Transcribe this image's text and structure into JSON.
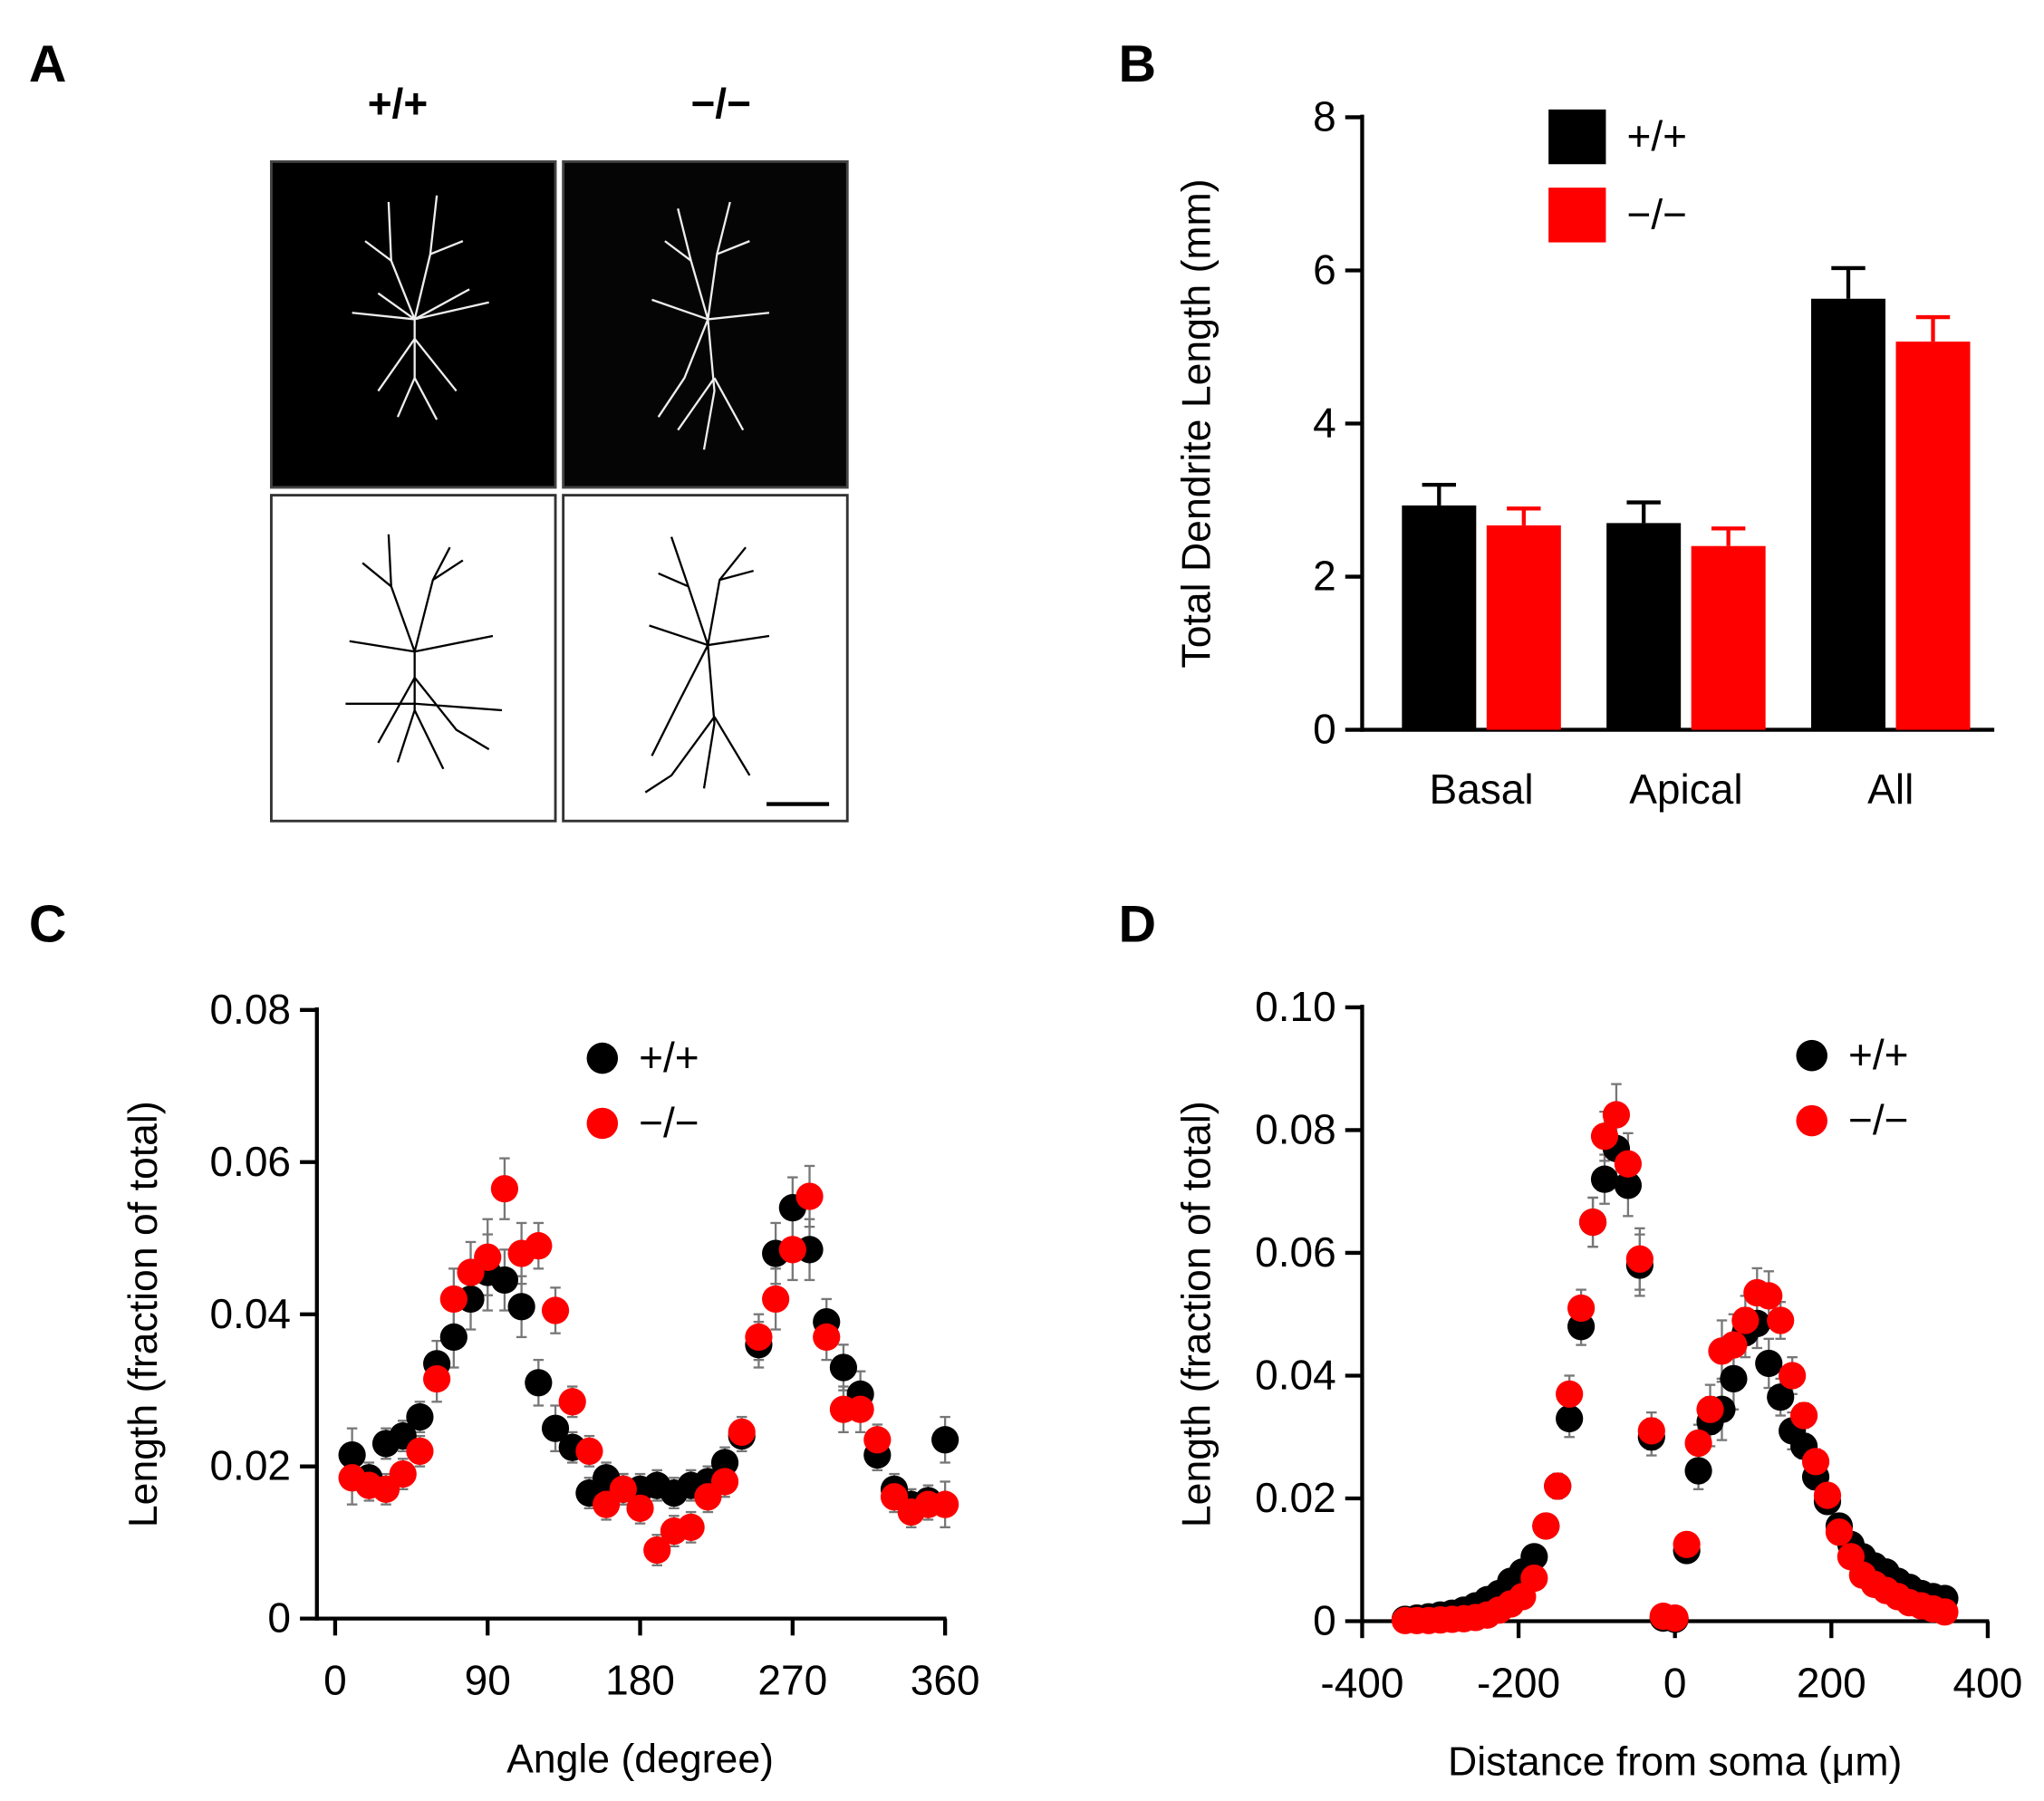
{
  "panel_labels": [
    "A",
    "B",
    "C",
    "D"
  ],
  "panel_a": {
    "labels": [
      "+/+",
      "−/−"
    ]
  },
  "chart_data": [
    {
      "type": "bar",
      "ylabel": "Total Dendrite Length (mm)",
      "categories": [
        "Basal",
        "Apical",
        "All"
      ],
      "series": [
        {
          "name": "+/+",
          "color": "#000000",
          "values": [
            2.93,
            2.7,
            5.63
          ],
          "errors": [
            0.27,
            0.27,
            0.4
          ]
        },
        {
          "name": "−/−",
          "color": "#ff0000",
          "values": [
            2.67,
            2.4,
            5.07
          ],
          "errors": [
            0.22,
            0.23,
            0.32
          ]
        }
      ],
      "ylim": [
        0,
        8
      ],
      "yticks": [
        0,
        2,
        4,
        6,
        8
      ]
    },
    {
      "type": "scatter",
      "xlabel": "Angle (degree)",
      "ylabel": "Length (fraction of total)",
      "x": [
        10,
        20,
        30,
        40,
        50,
        60,
        70,
        80,
        90,
        100,
        110,
        120,
        130,
        140,
        150,
        160,
        170,
        180,
        190,
        200,
        210,
        220,
        230,
        240,
        250,
        260,
        270,
        280,
        290,
        300,
        310,
        320,
        330,
        340,
        350,
        360
      ],
      "series": [
        {
          "name": "+/+",
          "color": "#000000",
          "values": [
            0.0215,
            0.0185,
            0.023,
            0.024,
            0.0265,
            0.0335,
            0.037,
            0.042,
            0.0455,
            0.0445,
            0.041,
            0.031,
            0.025,
            0.0225,
            0.0165,
            0.0185,
            0.017,
            0.017,
            0.0175,
            0.0165,
            0.0175,
            0.018,
            0.0205,
            0.024,
            0.036,
            0.048,
            0.054,
            0.0485,
            0.039,
            0.033,
            0.0295,
            0.0215,
            0.017,
            0.015,
            0.0155,
            0.0235
          ],
          "errors": [
            0.0035,
            0.002,
            0.002,
            0.002,
            0.002,
            0.003,
            0.004,
            0.004,
            0.005,
            0.004,
            0.004,
            0.003,
            0.003,
            0.002,
            0.002,
            0.002,
            0.002,
            0.002,
            0.002,
            0.002,
            0.002,
            0.002,
            0.002,
            0.002,
            0.003,
            0.004,
            0.004,
            0.004,
            0.003,
            0.003,
            0.003,
            0.002,
            0.002,
            0.002,
            0.002,
            0.003
          ]
        },
        {
          "name": "−/−",
          "color": "#ff0000",
          "values": [
            0.0185,
            0.0175,
            0.017,
            0.019,
            0.022,
            0.0315,
            0.042,
            0.0455,
            0.0475,
            0.0565,
            0.048,
            0.049,
            0.0405,
            0.0285,
            0.022,
            0.015,
            0.017,
            0.0145,
            0.009,
            0.0115,
            0.012,
            0.016,
            0.018,
            0.0245,
            0.037,
            0.042,
            0.0485,
            0.0555,
            0.037,
            0.0275,
            0.0275,
            0.0235,
            0.016,
            0.014,
            0.015,
            0.015
          ],
          "errors": [
            0.0035,
            0.002,
            0.002,
            0.002,
            0.002,
            0.003,
            0.004,
            0.004,
            0.005,
            0.004,
            0.004,
            0.003,
            0.003,
            0.002,
            0.002,
            0.002,
            0.002,
            0.002,
            0.002,
            0.002,
            0.002,
            0.002,
            0.002,
            0.002,
            0.003,
            0.004,
            0.004,
            0.004,
            0.003,
            0.003,
            0.003,
            0.002,
            0.002,
            0.002,
            0.002,
            0.003
          ]
        }
      ],
      "xlim": [
        0,
        360
      ],
      "xticks": [
        0,
        90,
        180,
        270,
        360
      ],
      "ylim": [
        0,
        0.08
      ],
      "yticks": [
        0,
        0.02,
        0.04,
        0.06,
        0.08
      ],
      "error_color": "#777777"
    },
    {
      "type": "scatter",
      "xlabel": "Distance from soma (μm)",
      "ylabel": "Length (fraction of total)",
      "x": [
        -345,
        -330,
        -315,
        -300,
        -285,
        -270,
        -255,
        -240,
        -225,
        -210,
        -195,
        -180,
        -165,
        -150,
        -135,
        -120,
        -105,
        -90,
        -75,
        -60,
        -45,
        -30,
        -15,
        0,
        15,
        30,
        45,
        60,
        75,
        90,
        105,
        120,
        135,
        150,
        165,
        180,
        195,
        210,
        225,
        240,
        255,
        270,
        285,
        300,
        315,
        330,
        345
      ],
      "series": [
        {
          "name": "+/+",
          "color": "#000000",
          "values": [
            0.0003,
            0.0005,
            0.0007,
            0.001,
            0.0013,
            0.0018,
            0.0025,
            0.0035,
            0.0045,
            0.0065,
            0.008,
            0.0105,
            0.0155,
            0.022,
            0.033,
            0.048,
            0.065,
            0.072,
            0.077,
            0.071,
            0.058,
            0.03,
            0.0005,
            0.0003,
            0.0115,
            0.0245,
            0.0325,
            0.0345,
            0.0395,
            0.047,
            0.0485,
            0.042,
            0.0365,
            0.031,
            0.0285,
            0.0235,
            0.0195,
            0.0155,
            0.0125,
            0.0105,
            0.009,
            0.008,
            0.0065,
            0.0055,
            0.0045,
            0.004,
            0.0037
          ],
          "errors": [
            0.0005,
            0.0005,
            0.0005,
            0.0005,
            0.0005,
            0.0005,
            0.0005,
            0.0005,
            0.0005,
            0.0005,
            0.0005,
            0.001,
            0.0015,
            0.002,
            0.003,
            0.003,
            0.004,
            0.004,
            0.005,
            0.005,
            0.005,
            0.003,
            0.0005,
            0.0005,
            0.001,
            0.003,
            0.004,
            0.005,
            0.005,
            0.004,
            0.004,
            0.004,
            0.003,
            0.003,
            0.002,
            0.002,
            0.0015,
            0.0015,
            0.001,
            0.001,
            0.001,
            0.001,
            0.001,
            0.001,
            0.001,
            0.0005,
            0.0005
          ]
        },
        {
          "name": "−/−",
          "color": "#ff0000",
          "values": [
            0.0001,
            0.0001,
            0.0001,
            0.0002,
            0.0003,
            0.0004,
            0.0006,
            0.001,
            0.0018,
            0.0028,
            0.004,
            0.007,
            0.0155,
            0.022,
            0.037,
            0.051,
            0.065,
            0.079,
            0.0825,
            0.0745,
            0.059,
            0.031,
            0.0008,
            0.0005,
            0.0125,
            0.029,
            0.0345,
            0.044,
            0.045,
            0.049,
            0.0535,
            0.053,
            0.049,
            0.04,
            0.0335,
            0.026,
            0.0205,
            0.0145,
            0.0105,
            0.0075,
            0.006,
            0.005,
            0.004,
            0.003,
            0.0025,
            0.002,
            0.0015
          ],
          "errors": [
            0.0005,
            0.0005,
            0.0005,
            0.0005,
            0.0005,
            0.0005,
            0.0005,
            0.0005,
            0.0005,
            0.0005,
            0.0005,
            0.001,
            0.0015,
            0.002,
            0.003,
            0.003,
            0.004,
            0.004,
            0.005,
            0.005,
            0.005,
            0.003,
            0.0005,
            0.0005,
            0.001,
            0.003,
            0.004,
            0.005,
            0.005,
            0.004,
            0.004,
            0.004,
            0.003,
            0.003,
            0.002,
            0.002,
            0.0015,
            0.0015,
            0.001,
            0.001,
            0.001,
            0.001,
            0.001,
            0.001,
            0.001,
            0.0005,
            0.0005
          ]
        }
      ],
      "xlim": [
        -400,
        400
      ],
      "xticks": [
        -400,
        -200,
        0,
        200,
        400
      ],
      "ylim": [
        0,
        0.1
      ],
      "yticks": [
        0,
        0.02,
        0.04,
        0.06,
        0.08,
        {
          "value": 0.1,
          "label": "0.10"
        }
      ],
      "error_color": "#777777"
    }
  ]
}
